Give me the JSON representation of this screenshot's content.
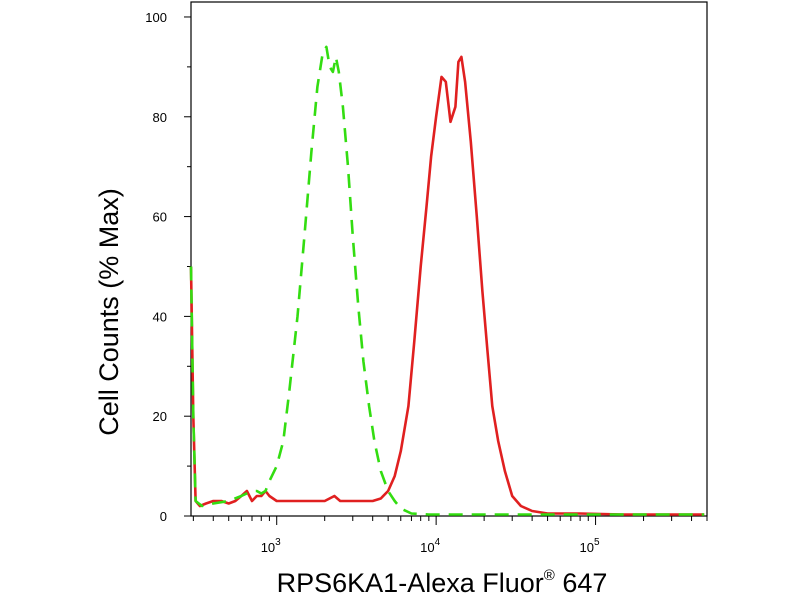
{
  "chart_data": {
    "type": "line",
    "title": "",
    "xlabel": "RPS6KA1-Alexa Fluor",
    "xlabel_superscript": "®",
    "xlabel_suffix": " 647",
    "ylabel": "Cell Counts (% Max)",
    "x_scale": "log",
    "xlim": [
      290,
      500000
    ],
    "ylim": [
      0,
      103
    ],
    "y_ticks": [
      0,
      20,
      40,
      60,
      80,
      100
    ],
    "x_ticks": [
      {
        "value": 1000,
        "base": "10",
        "exp": "3"
      },
      {
        "value": 10000,
        "base": "10",
        "exp": "4"
      },
      {
        "value": 100000,
        "base": "10",
        "exp": "5"
      }
    ],
    "grid": false,
    "legend": "none",
    "series": [
      {
        "color": "#e02020",
        "dash": "solid",
        "points": [
          [
            290,
            50
          ],
          [
            300,
            20
          ],
          [
            310,
            3
          ],
          [
            330,
            2
          ],
          [
            360,
            2.5
          ],
          [
            400,
            3
          ],
          [
            450,
            3
          ],
          [
            500,
            2.5
          ],
          [
            550,
            3
          ],
          [
            600,
            4
          ],
          [
            650,
            5
          ],
          [
            700,
            3
          ],
          [
            750,
            4
          ],
          [
            800,
            4
          ],
          [
            850,
            5
          ],
          [
            900,
            4
          ],
          [
            1000,
            3
          ],
          [
            1100,
            3
          ],
          [
            1300,
            3
          ],
          [
            1500,
            3
          ],
          [
            1700,
            3
          ],
          [
            2000,
            3
          ],
          [
            2300,
            4
          ],
          [
            2500,
            3
          ],
          [
            2800,
            3
          ],
          [
            3200,
            3
          ],
          [
            3600,
            3
          ],
          [
            4000,
            3
          ],
          [
            4500,
            3.5
          ],
          [
            5000,
            5
          ],
          [
            5500,
            8
          ],
          [
            6000,
            13
          ],
          [
            6700,
            22
          ],
          [
            7300,
            35
          ],
          [
            8000,
            50
          ],
          [
            8700,
            62
          ],
          [
            9300,
            72
          ],
          [
            10000,
            80
          ],
          [
            10800,
            88
          ],
          [
            11500,
            87
          ],
          [
            12300,
            79
          ],
          [
            13200,
            82
          ],
          [
            13800,
            91
          ],
          [
            14400,
            92
          ],
          [
            15200,
            87
          ],
          [
            16500,
            75
          ],
          [
            18000,
            60
          ],
          [
            19500,
            45
          ],
          [
            21000,
            33
          ],
          [
            22500,
            22
          ],
          [
            24500,
            15
          ],
          [
            27000,
            9
          ],
          [
            30000,
            4
          ],
          [
            34000,
            2
          ],
          [
            40000,
            1
          ],
          [
            50000,
            0.5
          ],
          [
            80000,
            0.5
          ],
          [
            150000,
            0.3
          ],
          [
            300000,
            0.3
          ],
          [
            480000,
            0.3
          ]
        ]
      },
      {
        "color": "#33dd11",
        "dash": "dashed",
        "points": [
          [
            290,
            50
          ],
          [
            300,
            20
          ],
          [
            310,
            3
          ],
          [
            340,
            2
          ],
          [
            400,
            2.5
          ],
          [
            500,
            3
          ],
          [
            600,
            4
          ],
          [
            700,
            5
          ],
          [
            750,
            5
          ],
          [
            800,
            4.5
          ],
          [
            850,
            5
          ],
          [
            900,
            7
          ],
          [
            1000,
            10
          ],
          [
            1100,
            15
          ],
          [
            1200,
            25
          ],
          [
            1350,
            40
          ],
          [
            1500,
            57
          ],
          [
            1650,
            73
          ],
          [
            1800,
            86
          ],
          [
            1950,
            93
          ],
          [
            2050,
            94
          ],
          [
            2150,
            90
          ],
          [
            2250,
            89
          ],
          [
            2350,
            92
          ],
          [
            2450,
            89
          ],
          [
            2600,
            82
          ],
          [
            2800,
            70
          ],
          [
            3000,
            56
          ],
          [
            3250,
            42
          ],
          [
            3500,
            31
          ],
          [
            3800,
            22
          ],
          [
            4100,
            15
          ],
          [
            4500,
            9
          ],
          [
            5000,
            5
          ],
          [
            5500,
            3
          ],
          [
            6000,
            1.5
          ],
          [
            7000,
            0.5
          ],
          [
            9000,
            0.3
          ],
          [
            20000,
            0.3
          ],
          [
            50000,
            0.3
          ],
          [
            200000,
            0.3
          ],
          [
            480000,
            0.3
          ]
        ]
      }
    ]
  }
}
